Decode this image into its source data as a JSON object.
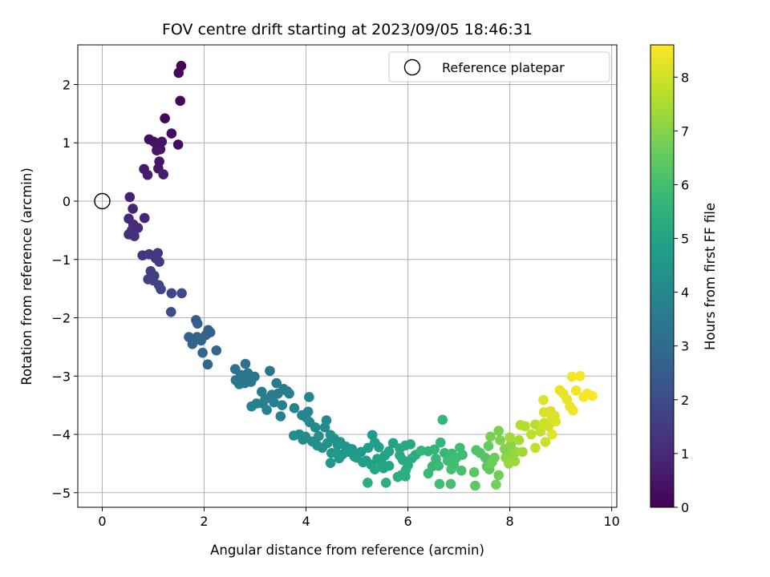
{
  "chart_data": {
    "type": "scatter",
    "title": "FOV centre drift starting at 2023/09/05 18:46:31",
    "xlabel": "Angular distance from reference (arcmin)",
    "ylabel": "Rotation from reference (arcmin)",
    "xlim": [
      -0.48,
      10.1
    ],
    "ylim": [
      -5.25,
      2.68
    ],
    "x_ticks": [
      0,
      2,
      4,
      6,
      8,
      10
    ],
    "y_ticks": [
      -5,
      -4,
      -3,
      -2,
      -1,
      0,
      1,
      2
    ],
    "grid": true,
    "legend": {
      "position": "top-right",
      "entries": [
        "Reference platepar"
      ]
    },
    "reference_point": {
      "x": 0,
      "y": 0
    },
    "colorbar": {
      "label": "Hours from first FF file",
      "colormap": "viridis",
      "range": [
        0,
        8.6
      ],
      "ticks": [
        0,
        1,
        2,
        3,
        4,
        5,
        6,
        7,
        8
      ]
    },
    "colormap_stops": [
      "#440154",
      "#482878",
      "#3e4989",
      "#31688e",
      "#26828e",
      "#1f9e89",
      "#35b779",
      "#6ece58",
      "#b5de2b",
      "#fde725"
    ],
    "points": [
      [
        1.55,
        2.32,
        0.1
      ],
      [
        1.5,
        2.2,
        0.12
      ],
      [
        1.53,
        1.72,
        0.15
      ],
      [
        1.23,
        1.42,
        0.2
      ],
      [
        1.36,
        1.16,
        0.25
      ],
      [
        1.49,
        0.97,
        0.3
      ],
      [
        0.92,
        1.06,
        0.35
      ],
      [
        1.01,
        1.02,
        0.38
      ],
      [
        1.08,
        0.95,
        0.4
      ],
      [
        1.17,
        1.02,
        0.42
      ],
      [
        1.14,
        0.89,
        0.45
      ],
      [
        1.07,
        0.87,
        0.48
      ],
      [
        1.12,
        0.68,
        0.5
      ],
      [
        1.1,
        0.56,
        0.55
      ],
      [
        0.82,
        0.55,
        0.6
      ],
      [
        0.89,
        0.45,
        0.65
      ],
      [
        1.2,
        0.46,
        0.68
      ],
      [
        0.54,
        0.07,
        0.8
      ],
      [
        0.6,
        -0.13,
        0.85
      ],
      [
        0.83,
        -0.29,
        0.9
      ],
      [
        0.52,
        -0.3,
        0.95
      ],
      [
        0.61,
        -0.4,
        1.0
      ],
      [
        0.7,
        -0.46,
        1.05
      ],
      [
        0.58,
        -0.5,
        1.1
      ],
      [
        0.52,
        -0.57,
        1.15
      ],
      [
        0.63,
        -0.6,
        1.2
      ],
      [
        0.79,
        -0.93,
        1.3
      ],
      [
        0.92,
        -0.91,
        1.35
      ],
      [
        1.09,
        -0.89,
        1.4
      ],
      [
        1.05,
        -0.98,
        1.45
      ],
      [
        1.12,
        -1.04,
        1.5
      ],
      [
        0.95,
        -1.2,
        1.55
      ],
      [
        1.02,
        -1.28,
        1.6
      ],
      [
        0.9,
        -1.34,
        1.65
      ],
      [
        1.0,
        -1.36,
        1.7
      ],
      [
        1.11,
        -1.44,
        1.75
      ],
      [
        1.15,
        -1.51,
        1.8
      ],
      [
        1.36,
        -1.58,
        1.85
      ],
      [
        1.56,
        -1.58,
        1.9
      ],
      [
        1.35,
        -1.9,
        2.0
      ],
      [
        1.84,
        -2.04,
        2.5
      ],
      [
        1.87,
        -2.1,
        2.55
      ],
      [
        2.08,
        -2.21,
        2.6
      ],
      [
        2.12,
        -2.25,
        2.62
      ],
      [
        2.03,
        -2.3,
        2.65
      ],
      [
        1.7,
        -2.33,
        2.7
      ],
      [
        1.86,
        -2.33,
        2.72
      ],
      [
        1.94,
        -2.39,
        2.75
      ],
      [
        1.77,
        -2.45,
        2.78
      ],
      [
        2.24,
        -2.56,
        2.8
      ],
      [
        1.97,
        -2.6,
        2.85
      ],
      [
        2.07,
        -2.8,
        2.9
      ],
      [
        2.61,
        -2.88,
        3.2
      ],
      [
        2.81,
        -2.79,
        3.22
      ],
      [
        3.29,
        -2.91,
        3.25
      ],
      [
        2.72,
        -2.98,
        3.28
      ],
      [
        2.86,
        -2.95,
        3.3
      ],
      [
        2.99,
        -3.01,
        3.32
      ],
      [
        2.62,
        -3.07,
        3.35
      ],
      [
        2.76,
        -3.08,
        3.38
      ],
      [
        2.92,
        -3.1,
        3.4
      ],
      [
        2.69,
        -3.14,
        3.42
      ],
      [
        2.8,
        -3.12,
        3.45
      ],
      [
        3.13,
        -3.27,
        3.5
      ],
      [
        3.33,
        -3.32,
        3.55
      ],
      [
        3.45,
        -3.3,
        3.58
      ],
      [
        3.56,
        -3.22,
        3.6
      ],
      [
        3.63,
        -3.26,
        3.62
      ],
      [
        3.42,
        -3.12,
        3.55
      ],
      [
        3.67,
        -3.3,
        3.65
      ],
      [
        3.2,
        -3.39,
        3.68
      ],
      [
        3.15,
        -3.47,
        3.7
      ],
      [
        3.37,
        -3.45,
        3.72
      ],
      [
        3.03,
        -3.47,
        3.75
      ],
      [
        2.93,
        -3.52,
        3.78
      ],
      [
        3.53,
        -3.5,
        3.8
      ],
      [
        3.23,
        -3.58,
        3.82
      ],
      [
        3.5,
        -3.69,
        3.85
      ],
      [
        3.77,
        -3.55,
        3.9
      ],
      [
        4.06,
        -3.36,
        3.92
      ],
      [
        3.92,
        -3.67,
        3.95
      ],
      [
        4.04,
        -3.61,
        3.98
      ],
      [
        4.0,
        -3.71,
        4.0
      ],
      [
        4.07,
        -3.79,
        4.02
      ],
      [
        4.4,
        -3.76,
        4.05
      ],
      [
        4.37,
        -3.88,
        4.08
      ],
      [
        4.18,
        -3.88,
        4.1
      ],
      [
        3.87,
        -4.0,
        4.12
      ],
      [
        3.76,
        -4.02,
        4.15
      ],
      [
        3.94,
        -4.09,
        4.18
      ],
      [
        3.99,
        -4.04,
        4.2
      ],
      [
        4.25,
        -4.03,
        4.22
      ],
      [
        4.12,
        -4.12,
        4.25
      ],
      [
        4.22,
        -4.19,
        4.28
      ],
      [
        4.32,
        -4.23,
        4.3
      ],
      [
        4.48,
        -4.01,
        4.32
      ],
      [
        4.55,
        -4.07,
        4.35
      ],
      [
        4.42,
        -4.15,
        4.38
      ],
      [
        4.62,
        -4.18,
        4.4
      ],
      [
        4.67,
        -4.13,
        4.42
      ],
      [
        4.78,
        -4.21,
        4.45
      ],
      [
        4.9,
        -4.25,
        4.48
      ],
      [
        4.5,
        -4.32,
        4.5
      ],
      [
        4.6,
        -4.33,
        4.52
      ],
      [
        4.72,
        -4.34,
        4.55
      ],
      [
        4.85,
        -4.3,
        4.58
      ],
      [
        4.95,
        -4.38,
        4.6
      ],
      [
        4.48,
        -4.49,
        4.62
      ],
      [
        4.65,
        -4.41,
        4.65
      ],
      [
        5.08,
        -4.3,
        4.68
      ],
      [
        5.0,
        -4.4,
        4.7
      ],
      [
        5.18,
        -4.45,
        4.72
      ],
      [
        5.3,
        -4.01,
        4.75
      ],
      [
        5.35,
        -4.14,
        4.78
      ],
      [
        5.43,
        -4.22,
        4.8
      ],
      [
        5.22,
        -4.23,
        4.82
      ],
      [
        5.12,
        -4.48,
        4.85
      ],
      [
        5.28,
        -4.52,
        4.88
      ],
      [
        5.4,
        -4.42,
        4.9
      ],
      [
        5.48,
        -4.48,
        4.92
      ],
      [
        5.55,
        -4.36,
        4.95
      ],
      [
        5.63,
        -4.29,
        4.98
      ],
      [
        5.71,
        -4.15,
        5.0
      ],
      [
        5.52,
        -4.58,
        5.02
      ],
      [
        5.63,
        -4.54,
        5.05
      ],
      [
        5.35,
        -4.6,
        5.08
      ],
      [
        5.84,
        -4.24,
        5.12
      ],
      [
        5.95,
        -4.19,
        5.15
      ],
      [
        6.05,
        -4.17,
        5.18
      ],
      [
        5.84,
        -4.36,
        5.2
      ],
      [
        5.9,
        -4.44,
        5.22
      ],
      [
        6.0,
        -4.53,
        5.25
      ],
      [
        6.08,
        -4.41,
        5.28
      ],
      [
        6.15,
        -4.35,
        5.3
      ],
      [
        5.8,
        -4.73,
        5.32
      ],
      [
        5.96,
        -4.61,
        5.35
      ],
      [
        5.87,
        -4.7,
        5.38
      ],
      [
        5.21,
        -4.83,
        5.4
      ],
      [
        5.57,
        -4.83,
        5.42
      ],
      [
        5.95,
        -4.72,
        5.45
      ],
      [
        6.26,
        -4.28,
        5.6
      ],
      [
        6.4,
        -4.29,
        5.62
      ],
      [
        6.52,
        -4.26,
        5.65
      ],
      [
        6.64,
        -4.14,
        5.68
      ],
      [
        6.68,
        -3.75,
        5.7
      ],
      [
        6.72,
        -4.32,
        5.72
      ],
      [
        6.55,
        -4.42,
        5.75
      ],
      [
        6.48,
        -4.55,
        5.78
      ],
      [
        6.4,
        -4.67,
        5.8
      ],
      [
        6.6,
        -4.54,
        5.82
      ],
      [
        6.86,
        -4.33,
        5.85
      ],
      [
        6.95,
        -4.4,
        5.88
      ],
      [
        7.07,
        -4.35,
        5.9
      ],
      [
        7.02,
        -4.23,
        5.92
      ],
      [
        6.78,
        -4.45,
        5.95
      ],
      [
        6.9,
        -4.52,
        5.98
      ],
      [
        6.62,
        -4.85,
        6.0
      ],
      [
        6.85,
        -4.6,
        6.02
      ],
      [
        6.84,
        -4.85,
        6.05
      ],
      [
        7.05,
        -4.62,
        6.08
      ],
      [
        7.34,
        -4.27,
        6.2
      ],
      [
        7.42,
        -4.32,
        6.25
      ],
      [
        7.52,
        -4.4,
        6.3
      ],
      [
        7.3,
        -4.65,
        6.35
      ],
      [
        7.32,
        -4.88,
        6.4
      ],
      [
        7.55,
        -4.55,
        6.45
      ],
      [
        7.6,
        -4.6,
        6.5
      ],
      [
        7.58,
        -4.2,
        6.55
      ],
      [
        7.7,
        -4.4,
        6.6
      ],
      [
        7.65,
        -4.48,
        6.65
      ],
      [
        7.78,
        -4.7,
        6.7
      ],
      [
        7.73,
        -4.86,
        6.75
      ],
      [
        7.62,
        -4.04,
        6.8
      ],
      [
        7.78,
        -3.94,
        6.85
      ],
      [
        7.81,
        -4.1,
        6.9
      ],
      [
        7.9,
        -4.25,
        6.95
      ],
      [
        7.95,
        -4.32,
        7.0
      ],
      [
        8.02,
        -4.18,
        7.05
      ],
      [
        7.92,
        -4.4,
        7.1
      ],
      [
        8.05,
        -4.38,
        7.15
      ],
      [
        8.12,
        -4.3,
        7.2
      ],
      [
        7.98,
        -4.5,
        7.25
      ],
      [
        8.1,
        -4.46,
        7.3
      ],
      [
        8.25,
        -4.3,
        7.35
      ],
      [
        8.0,
        -4.05,
        7.4
      ],
      [
        8.18,
        -4.1,
        7.45
      ],
      [
        8.21,
        -3.84,
        7.6
      ],
      [
        8.3,
        -3.86,
        7.65
      ],
      [
        8.5,
        -3.83,
        7.7
      ],
      [
        8.42,
        -4.0,
        7.75
      ],
      [
        8.5,
        -4.23,
        7.8
      ],
      [
        8.6,
        -3.95,
        7.85
      ],
      [
        8.7,
        -4.13,
        7.9
      ],
      [
        8.68,
        -3.8,
        7.95
      ],
      [
        8.76,
        -3.86,
        8.0
      ],
      [
        8.82,
        -3.72,
        8.05
      ],
      [
        8.67,
        -3.62,
        8.1
      ],
      [
        8.8,
        -3.6,
        8.12
      ],
      [
        8.88,
        -3.68,
        8.15
      ],
      [
        8.9,
        -3.78,
        8.18
      ],
      [
        8.66,
        -3.41,
        8.2
      ],
      [
        8.83,
        -4.0,
        8.22
      ],
      [
        8.98,
        -3.24,
        8.3
      ],
      [
        9.05,
        -3.3,
        8.32
      ],
      [
        9.12,
        -3.4,
        8.35
      ],
      [
        9.18,
        -3.52,
        8.38
      ],
      [
        9.24,
        -3.59,
        8.4
      ],
      [
        9.3,
        -3.25,
        8.42
      ],
      [
        9.22,
        -3.01,
        8.45
      ],
      [
        9.38,
        -3.0,
        8.48
      ],
      [
        9.45,
        -3.36,
        8.5
      ],
      [
        9.52,
        -3.3,
        8.52
      ],
      [
        9.62,
        -3.34,
        8.55
      ]
    ]
  }
}
